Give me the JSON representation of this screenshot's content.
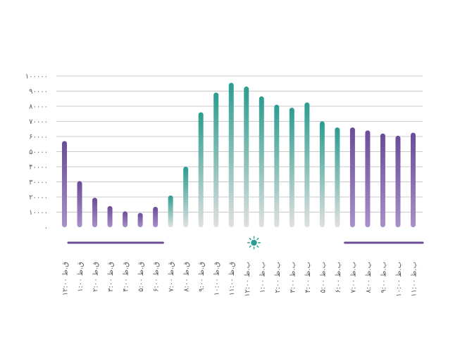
{
  "colors": {
    "night": "#6b4c9a",
    "night_light": "#a890c8",
    "day": "#2a9d8f",
    "day_light": "#e0e0e0",
    "grid": "#c9c9c9",
    "axis_text": "#5d5d5d"
  },
  "chart_data": {
    "type": "bar",
    "title": "",
    "xlabel": "",
    "ylabel": "",
    "ylim": [
      0,
      100000
    ],
    "yticks": [
      "۰",
      "۱۰۰۰۰",
      "۲۰۰۰۰",
      "۳۰۰۰۰",
      "۴۰۰۰۰",
      "۵۰۰۰۰",
      "۶۰۰۰۰",
      "۷۰۰۰۰",
      "۸۰۰۰۰",
      "۹۰۰۰۰",
      "۱۰۰۰۰۰"
    ],
    "ytick_values": [
      0,
      10000,
      20000,
      30000,
      40000,
      50000,
      60000,
      70000,
      80000,
      90000,
      100000
    ],
    "grid": true,
    "categories": [
      "۱۲:۰۰ ق.ظ",
      "۱:۰۰ ق.ظ",
      "۲:۰۰ ق.ظ",
      "۳:۰۰ ق.ظ",
      "۴:۰۰ ق.ظ",
      "۵:۰۰ ق.ظ",
      "۶:۰۰ ق.ظ",
      "۷:۰۰ ق.ظ",
      "۸:۰۰ ق.ظ",
      "۹:۰۰ ق.ظ",
      "۱۰:۰۰ ق.ظ",
      "۱۱:۰۰ ق.ظ",
      "۱۲:۰۰ ب.ظ",
      "۱:۰۰ ب.ظ",
      "۲:۰۰ ب.ظ",
      "۳:۰۰ ب.ظ",
      "۴:۰۰ ب.ظ",
      "۵:۰۰ ب.ظ",
      "۶:۰۰ ب.ظ",
      "۷:۰۰ ب.ظ",
      "۸:۰۰ ب.ظ",
      "۹:۰۰ ب.ظ",
      "۱۰:۰۰ ب.ظ",
      "۱۱:۰۰ ب.ظ"
    ],
    "values": [
      57000,
      30500,
      19500,
      14000,
      10500,
      9500,
      13500,
      21000,
      40000,
      76000,
      89000,
      95500,
      93000,
      86500,
      81000,
      79000,
      82500,
      70000,
      66000,
      66000,
      64000,
      62000,
      60500,
      62500
    ],
    "phase": [
      "night",
      "night",
      "night",
      "night",
      "night",
      "night",
      "night",
      "day",
      "day",
      "day",
      "day",
      "day",
      "day",
      "day",
      "day",
      "day",
      "day",
      "day",
      "day",
      "night",
      "night",
      "night",
      "night",
      "night"
    ],
    "timeline": {
      "night_icon": "moon-icon",
      "day_icon": "sun-icon"
    }
  }
}
